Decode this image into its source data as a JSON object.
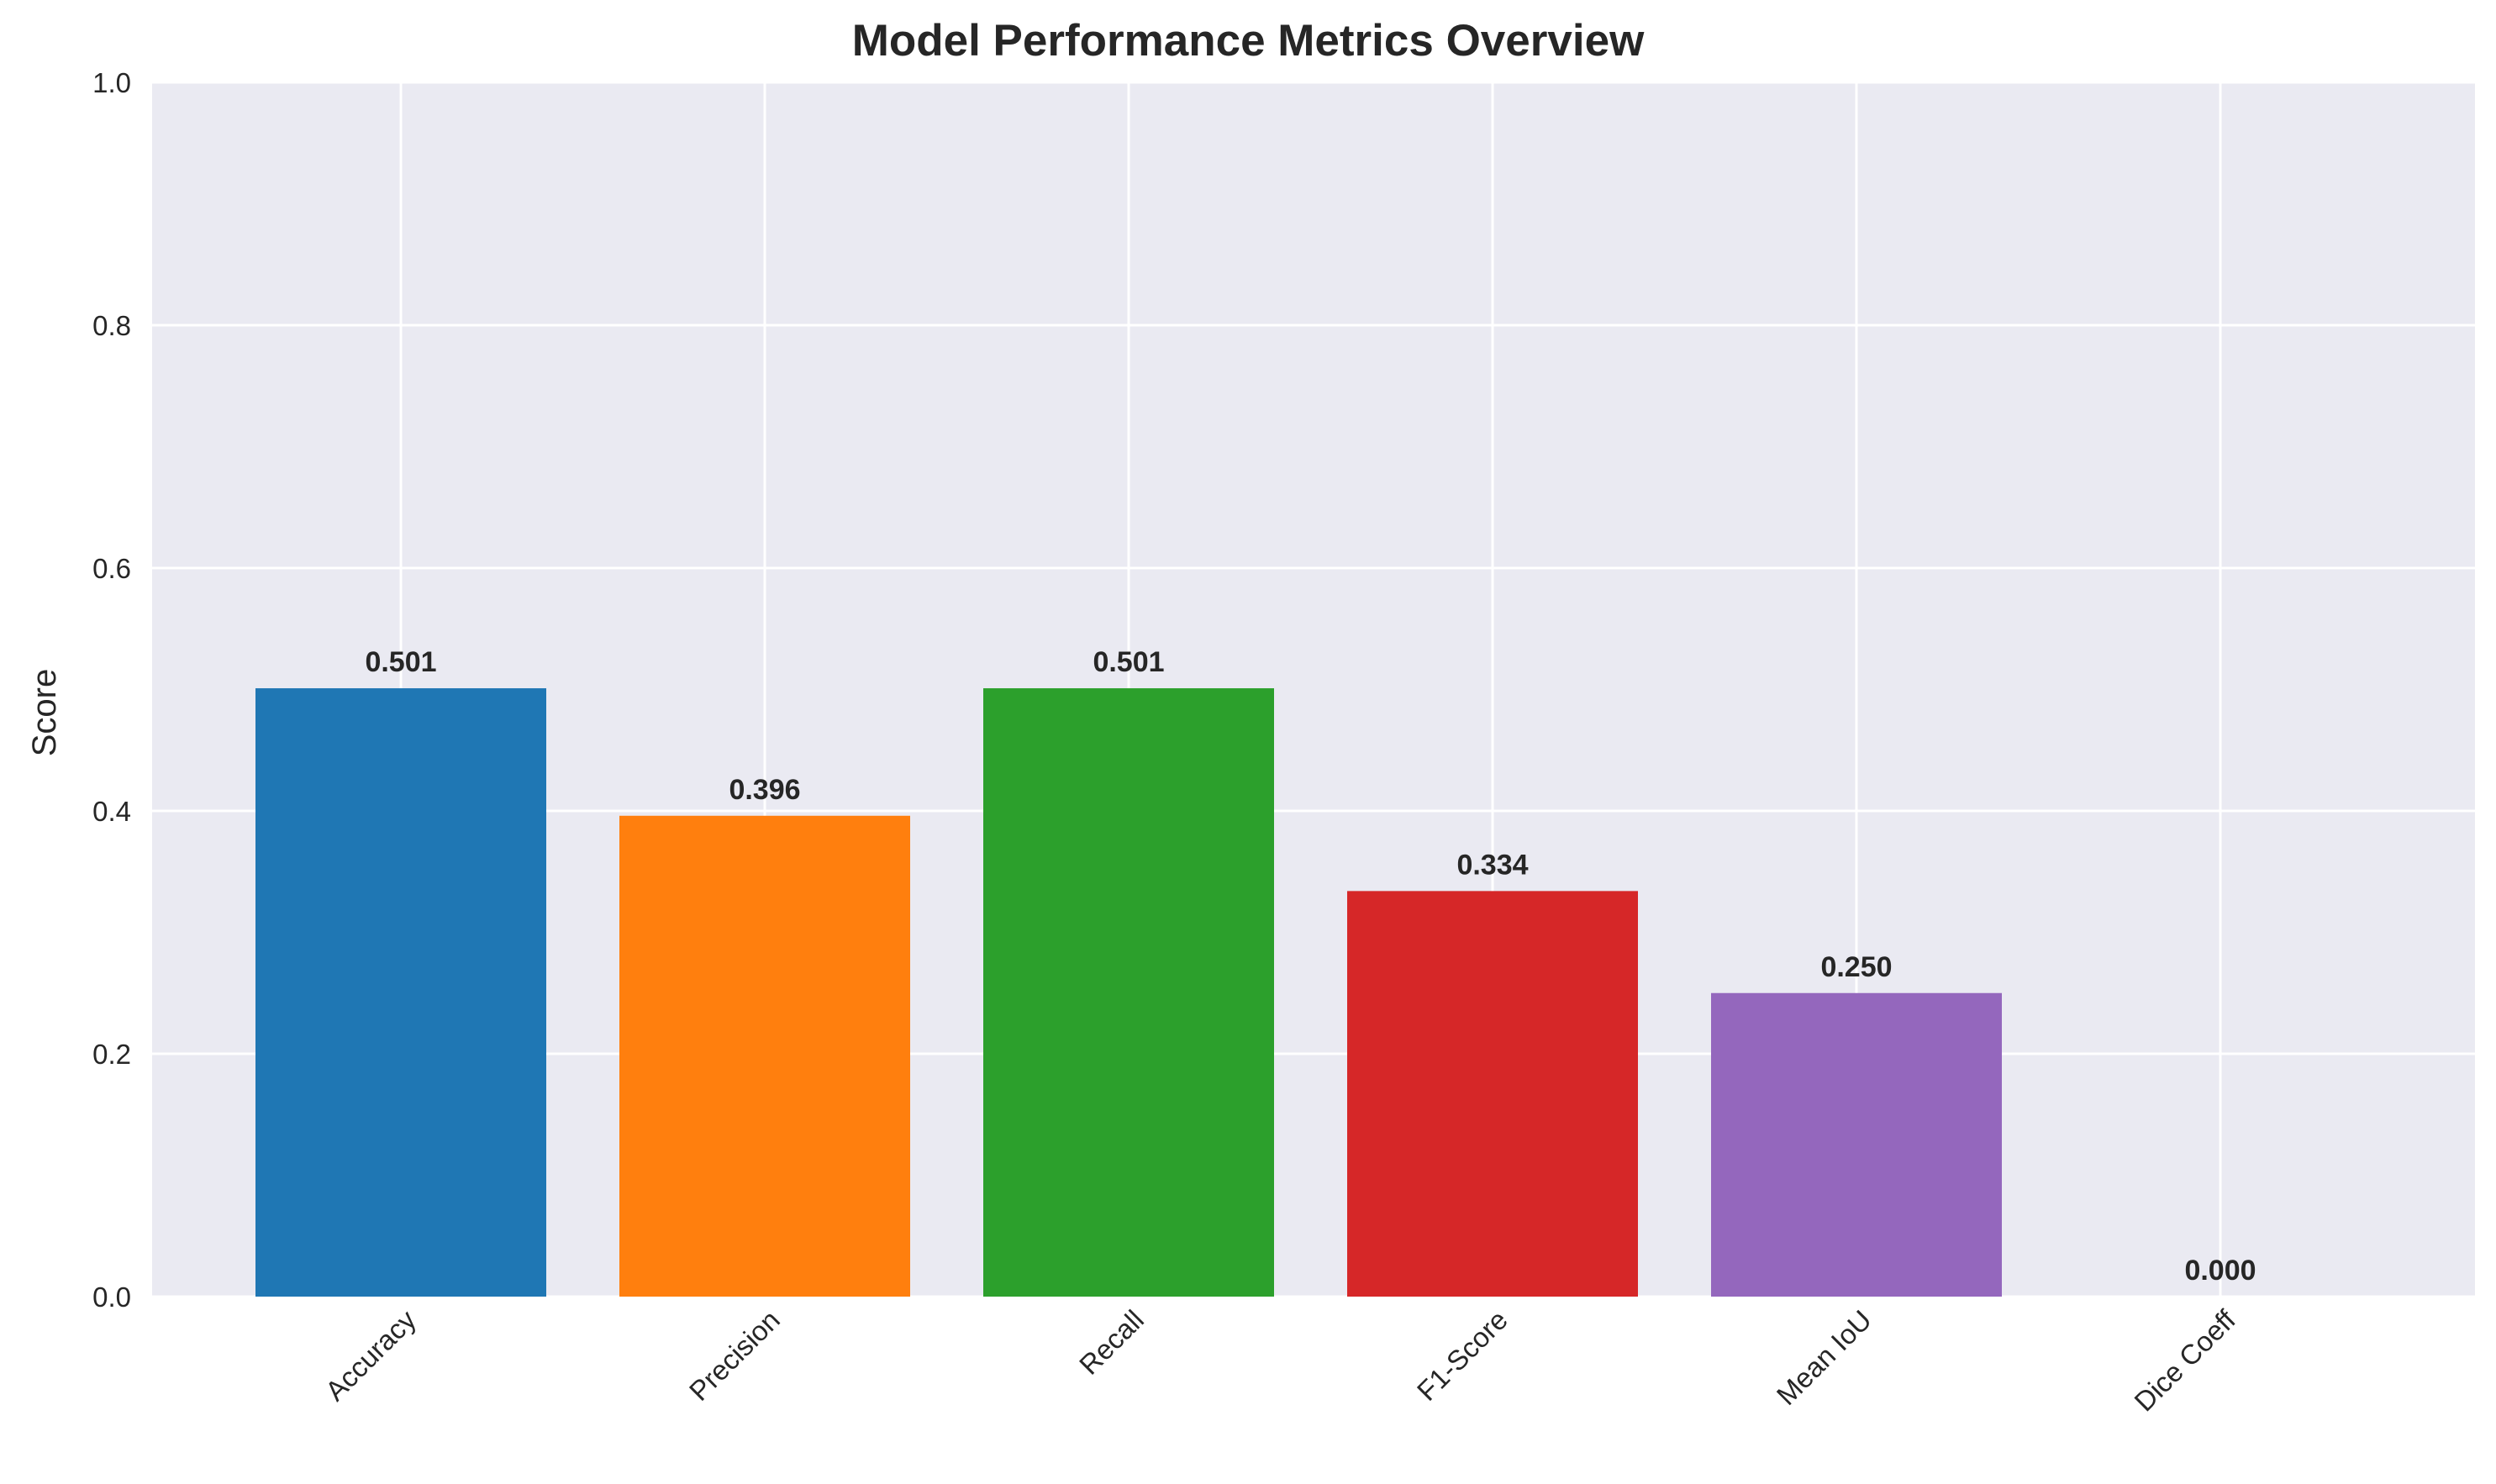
{
  "chart_data": {
    "type": "bar",
    "title": "Model Performance Metrics Overview",
    "xlabel": "",
    "ylabel": "Score",
    "ylim": [
      0,
      1.0
    ],
    "yticks": [
      "0.0",
      "0.2",
      "0.4",
      "0.6",
      "0.8",
      "1.0"
    ],
    "categories": [
      "Accuracy",
      "Precision",
      "Recall",
      "F1-Score",
      "Mean IoU",
      "Dice Coeff"
    ],
    "values": [
      0.501,
      0.396,
      0.501,
      0.334,
      0.25,
      0.0
    ],
    "value_labels": [
      "0.501",
      "0.396",
      "0.501",
      "0.334",
      "0.250",
      "0.000"
    ],
    "colors": [
      "#1f77b4",
      "#ff7f0e",
      "#2ca02c",
      "#d62728",
      "#9467bd",
      "#8c564b"
    ],
    "grid": true,
    "background": "#eaeaf2",
    "grid_color": "#ffffff"
  }
}
